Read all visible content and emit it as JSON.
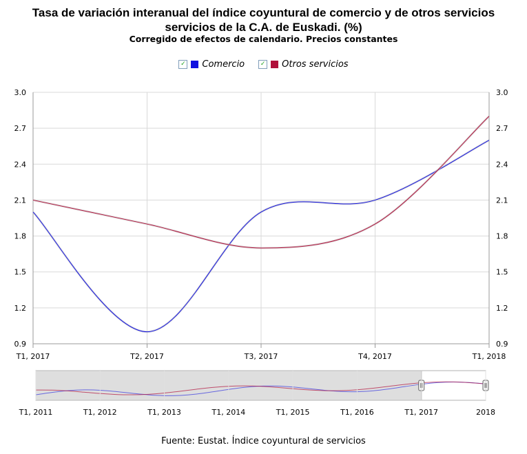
{
  "title_line1": "Tasa de variación interanual del índice coyuntural de comercio y de otros servicios",
  "title_line2": "servicios de la C.A. de Euskadi. (%)",
  "subtitle": "Corregido de efectos de calendario. Precios constantes",
  "footer": "Fuente: Eustat. Índice coyuntural de servicios",
  "legend": [
    {
      "name": "Comercio",
      "color": "#1010e0",
      "check": "✓"
    },
    {
      "name": "Otros servicios",
      "color": "#b0103a",
      "check": "✓"
    }
  ],
  "chart_data": {
    "type": "line",
    "categories": [
      "T1, 2017",
      "T2, 2017",
      "T3, 2017",
      "T4, 2017",
      "T1, 2018"
    ],
    "series": [
      {
        "name": "Comercio",
        "values": [
          2.0,
          1.0,
          2.0,
          2.1,
          2.6
        ]
      },
      {
        "name": "Otros servicios",
        "values": [
          2.1,
          1.9,
          1.7,
          1.9,
          2.8
        ]
      }
    ],
    "ylim": [
      0.9,
      3.0
    ],
    "yticks": [
      "0.9",
      "1.2",
      "1.5",
      "1.8",
      "2.1",
      "2.4",
      "2.7",
      "3.0"
    ],
    "grid": true,
    "legend_position": "top-center"
  },
  "navigator": {
    "labels": [
      "T1, 2011",
      "T1, 2012",
      "T1, 2013",
      "T1, 2014",
      "T1, 2015",
      "T1, 2016",
      "T1, 2017",
      "2018"
    ]
  }
}
